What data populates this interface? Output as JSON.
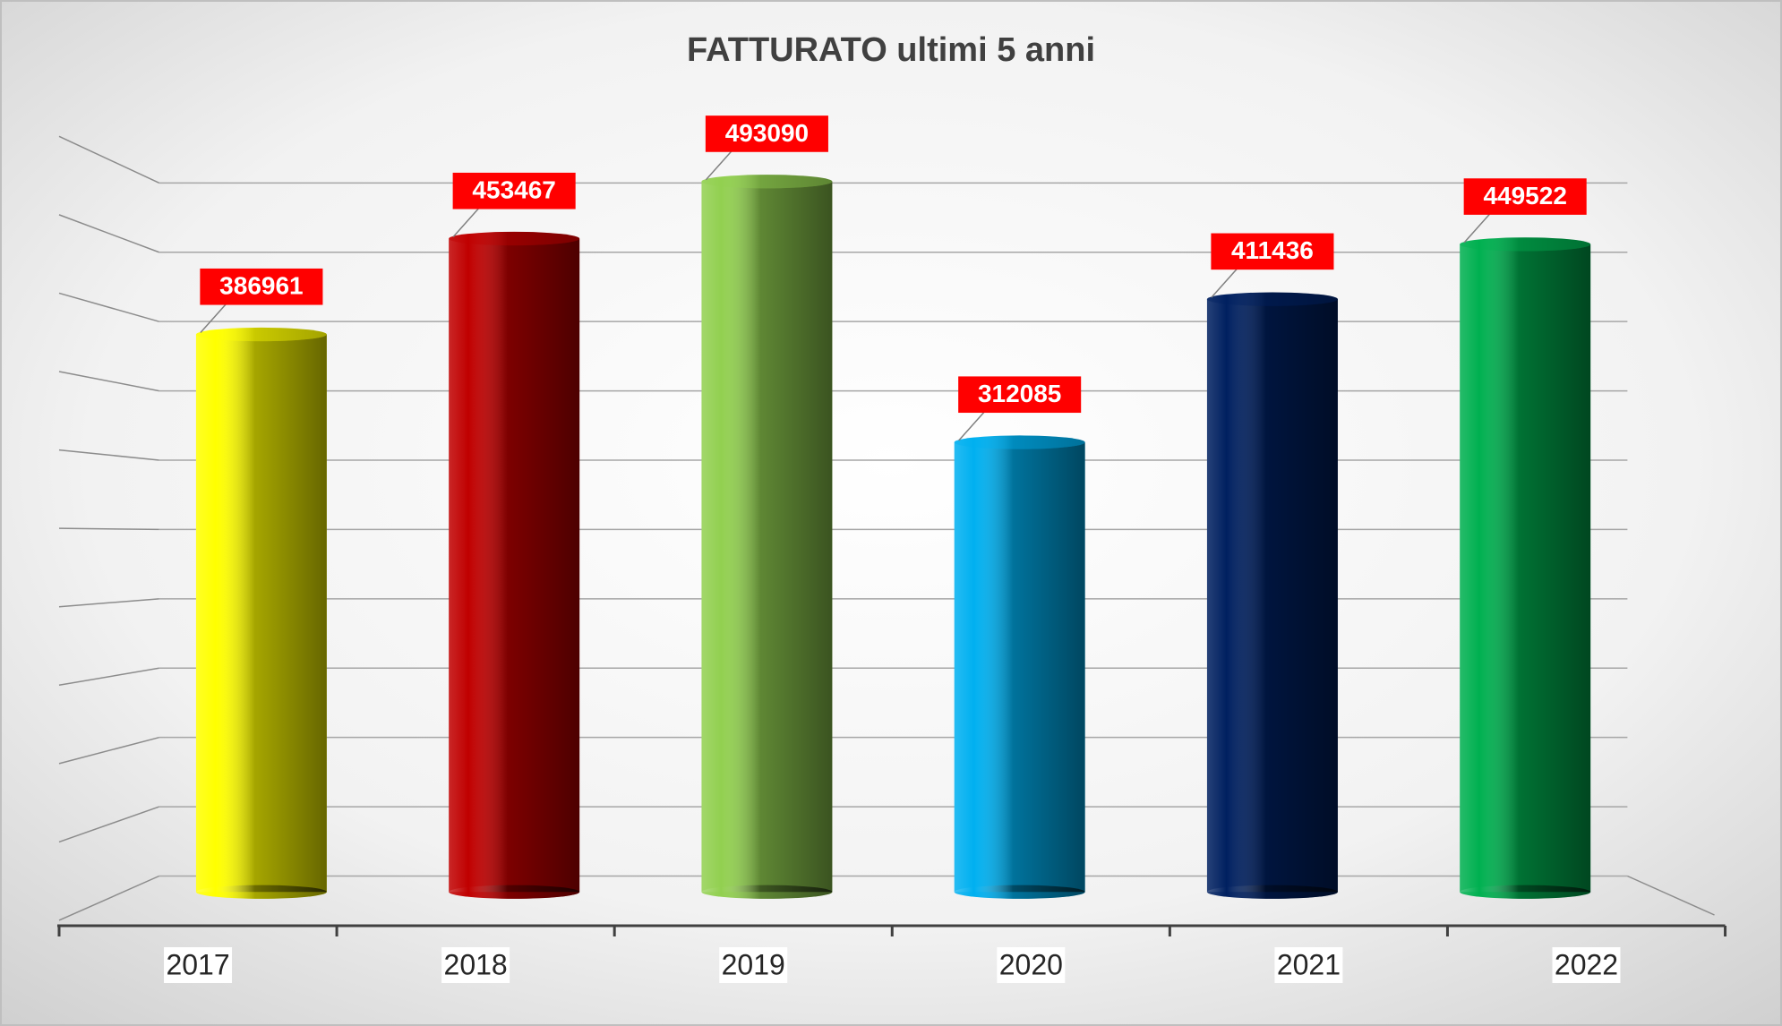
{
  "chart_data": {
    "type": "bar",
    "title": "FATTURATO ultimi 5 anni",
    "categories": [
      "2017",
      "2018",
      "2019",
      "2020",
      "2021",
      "2022"
    ],
    "values": [
      386961,
      453467,
      493090,
      312085,
      411436,
      449522
    ],
    "colors": [
      "#ffff00",
      "#c00000",
      "#92d050",
      "#00b0f0",
      "#002060",
      "#00b050"
    ],
    "ylim": [
      0,
      500000
    ],
    "yticks": [
      0,
      50000,
      100000,
      150000,
      200000,
      250000,
      300000,
      350000,
      400000,
      450000,
      500000
    ],
    "grid": true
  }
}
